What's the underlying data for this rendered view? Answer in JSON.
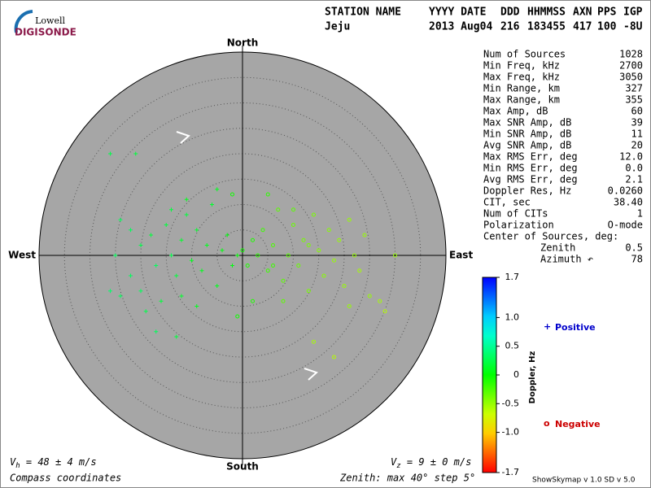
{
  "logo": {
    "line1": "Lowell",
    "line2": "DIGISONDE"
  },
  "header": [
    [
      "STATION NAME",
      "Jeju"
    ],
    [
      "YYYY DATE",
      "2013 Aug04"
    ],
    [
      "DDD",
      "216"
    ],
    [
      "HHMMSS",
      "183455"
    ],
    [
      "AXN",
      "417"
    ],
    [
      "PPS",
      "100"
    ],
    [
      "IGP",
      "-8U"
    ]
  ],
  "stats": [
    [
      "Num of Sources",
      "1028"
    ],
    [
      "Min Freq, kHz",
      "2700"
    ],
    [
      "Max Freq, kHz",
      "3050"
    ],
    [
      "Min Range, km",
      "327"
    ],
    [
      "Max Range, km",
      "355"
    ],
    [
      "Max Amp, dB",
      "60"
    ],
    [
      "Max SNR Amp, dB",
      "39"
    ],
    [
      "Min SNR Amp, dB",
      "11"
    ],
    [
      "Avg SNR Amp, dB",
      "20"
    ],
    [
      "Max RMS Err, deg",
      "12.0"
    ],
    [
      "Min RMS Err, deg",
      "0.0"
    ],
    [
      "Avg RMS Err, deg",
      "2.1"
    ],
    [
      "Doppler Res, Hz",
      "0.0260"
    ],
    [
      "CIT, sec",
      "38.40"
    ],
    [
      "Num of CITs",
      "1"
    ],
    [
      "Polarization",
      "O-mode"
    ]
  ],
  "center": {
    "title": "Center of Sources, deg:",
    "rows": [
      [
        "Zenith",
        "0.5"
      ],
      [
        "Azimuth ↶",
        "78"
      ]
    ]
  },
  "directions": {
    "north": "North",
    "south": "South",
    "east": "East",
    "west": "West"
  },
  "rings": {
    "max": 40,
    "step": 5
  },
  "colorbar": {
    "label": "Doppler, Hz",
    "lim": [
      -1.7,
      1.7
    ],
    "ticks": [
      1.7,
      {
        "value": 1,
        "label": "1.0"
      },
      0.5,
      0,
      -0.5,
      {
        "value": -1,
        "label": "-1.0"
      },
      -1.7
    ]
  },
  "legend": {
    "positive_symbol": "+",
    "positive": "Positive",
    "negative_symbol": "o",
    "negative": "Negative"
  },
  "footer": {
    "vh": {
      "symbol": "V",
      "sub": "h",
      "text": " = 48 ± 4 m/s"
    },
    "vz": {
      "symbol": "V",
      "sub": "z",
      "text": " = 9 ± 0 m/s"
    },
    "coords": "Compass coordinates",
    "zenith": "Zenith: max 40°  step 5°",
    "version": "ShowSkymap v 1.0   SD v 5.0"
  },
  "sources": [
    [
      -26,
      20,
      0.25
    ],
    [
      -21,
      20,
      0.2
    ],
    [
      -25,
      0,
      0.3
    ],
    [
      -22,
      5,
      0.3
    ],
    [
      -20,
      2,
      0.25
    ],
    [
      -18,
      4,
      0.2
    ],
    [
      -17,
      -2,
      0.3
    ],
    [
      -15,
      6,
      0.2
    ],
    [
      -14,
      0,
      0.25
    ],
    [
      -13,
      -4,
      0.2
    ],
    [
      -12,
      3,
      0.15
    ],
    [
      -11,
      8,
      0.2
    ],
    [
      -10,
      -1,
      0.1
    ],
    [
      -9,
      5,
      0.15
    ],
    [
      -8,
      -3,
      0.1
    ],
    [
      -7,
      2,
      0.1
    ],
    [
      -6,
      10,
      0.15
    ],
    [
      -5,
      -6,
      0.1
    ],
    [
      -4,
      1,
      0.05
    ],
    [
      -3,
      4,
      0.05
    ],
    [
      -2,
      -2,
      0.05
    ],
    [
      -1,
      0,
      0.02
    ],
    [
      -26,
      -7,
      0.35
    ],
    [
      -24,
      -8,
      0.3
    ],
    [
      -19,
      -11,
      0.25
    ],
    [
      -17,
      -15,
      0.3
    ],
    [
      -13,
      -16,
      0.2
    ],
    [
      -20,
      -7,
      0.3
    ],
    [
      -16,
      -9,
      0.2
    ],
    [
      -12,
      -8,
      0.15
    ],
    [
      -9,
      -10,
      0.1
    ],
    [
      -22,
      -4,
      0.3
    ],
    [
      -11,
      11,
      0.1
    ],
    [
      -24,
      7,
      0.3
    ],
    [
      -14,
      9,
      0.2
    ],
    [
      -5,
      13,
      0.1
    ],
    [
      0,
      1,
      -0.05
    ],
    [
      1,
      -2,
      -0.1
    ],
    [
      2,
      3,
      -0.1
    ],
    [
      3,
      0,
      -0.15
    ],
    [
      4,
      5,
      -0.2
    ],
    [
      5,
      -3,
      -0.2
    ],
    [
      6,
      2,
      -0.25
    ],
    [
      7,
      9,
      -0.3
    ],
    [
      8,
      -5,
      -0.3
    ],
    [
      9,
      0,
      -0.3
    ],
    [
      10,
      6,
      -0.35
    ],
    [
      11,
      -2,
      -0.35
    ],
    [
      12,
      3,
      -0.4
    ],
    [
      13,
      -7,
      -0.4
    ],
    [
      14,
      8,
      -0.4
    ],
    [
      15,
      1,
      -0.45
    ],
    [
      16,
      -4,
      -0.45
    ],
    [
      17,
      5,
      -0.45
    ],
    [
      18,
      -1,
      -0.5
    ],
    [
      19,
      3,
      -0.5
    ],
    [
      20,
      -6,
      -0.5
    ],
    [
      21,
      7,
      -0.5
    ],
    [
      22,
      0,
      -0.5
    ],
    [
      23,
      -3,
      -0.55
    ],
    [
      24,
      4,
      -0.5
    ],
    [
      25,
      -8,
      -0.5
    ],
    [
      27,
      -9,
      -0.55
    ],
    [
      28,
      -11,
      -0.6
    ],
    [
      30,
      0,
      -0.5
    ],
    [
      14,
      -17,
      -0.55
    ],
    [
      18,
      -20,
      -0.6
    ],
    [
      21,
      -10,
      -0.5
    ],
    [
      5,
      12,
      -0.15
    ],
    [
      10,
      9,
      -0.3
    ],
    [
      -2,
      12,
      -0.05
    ],
    [
      8,
      -9,
      -0.3
    ],
    [
      2,
      -9,
      -0.1
    ],
    [
      -1,
      -12,
      -0.05
    ],
    [
      13,
      2,
      -0.4
    ],
    [
      6,
      -2,
      -0.2
    ]
  ]
}
